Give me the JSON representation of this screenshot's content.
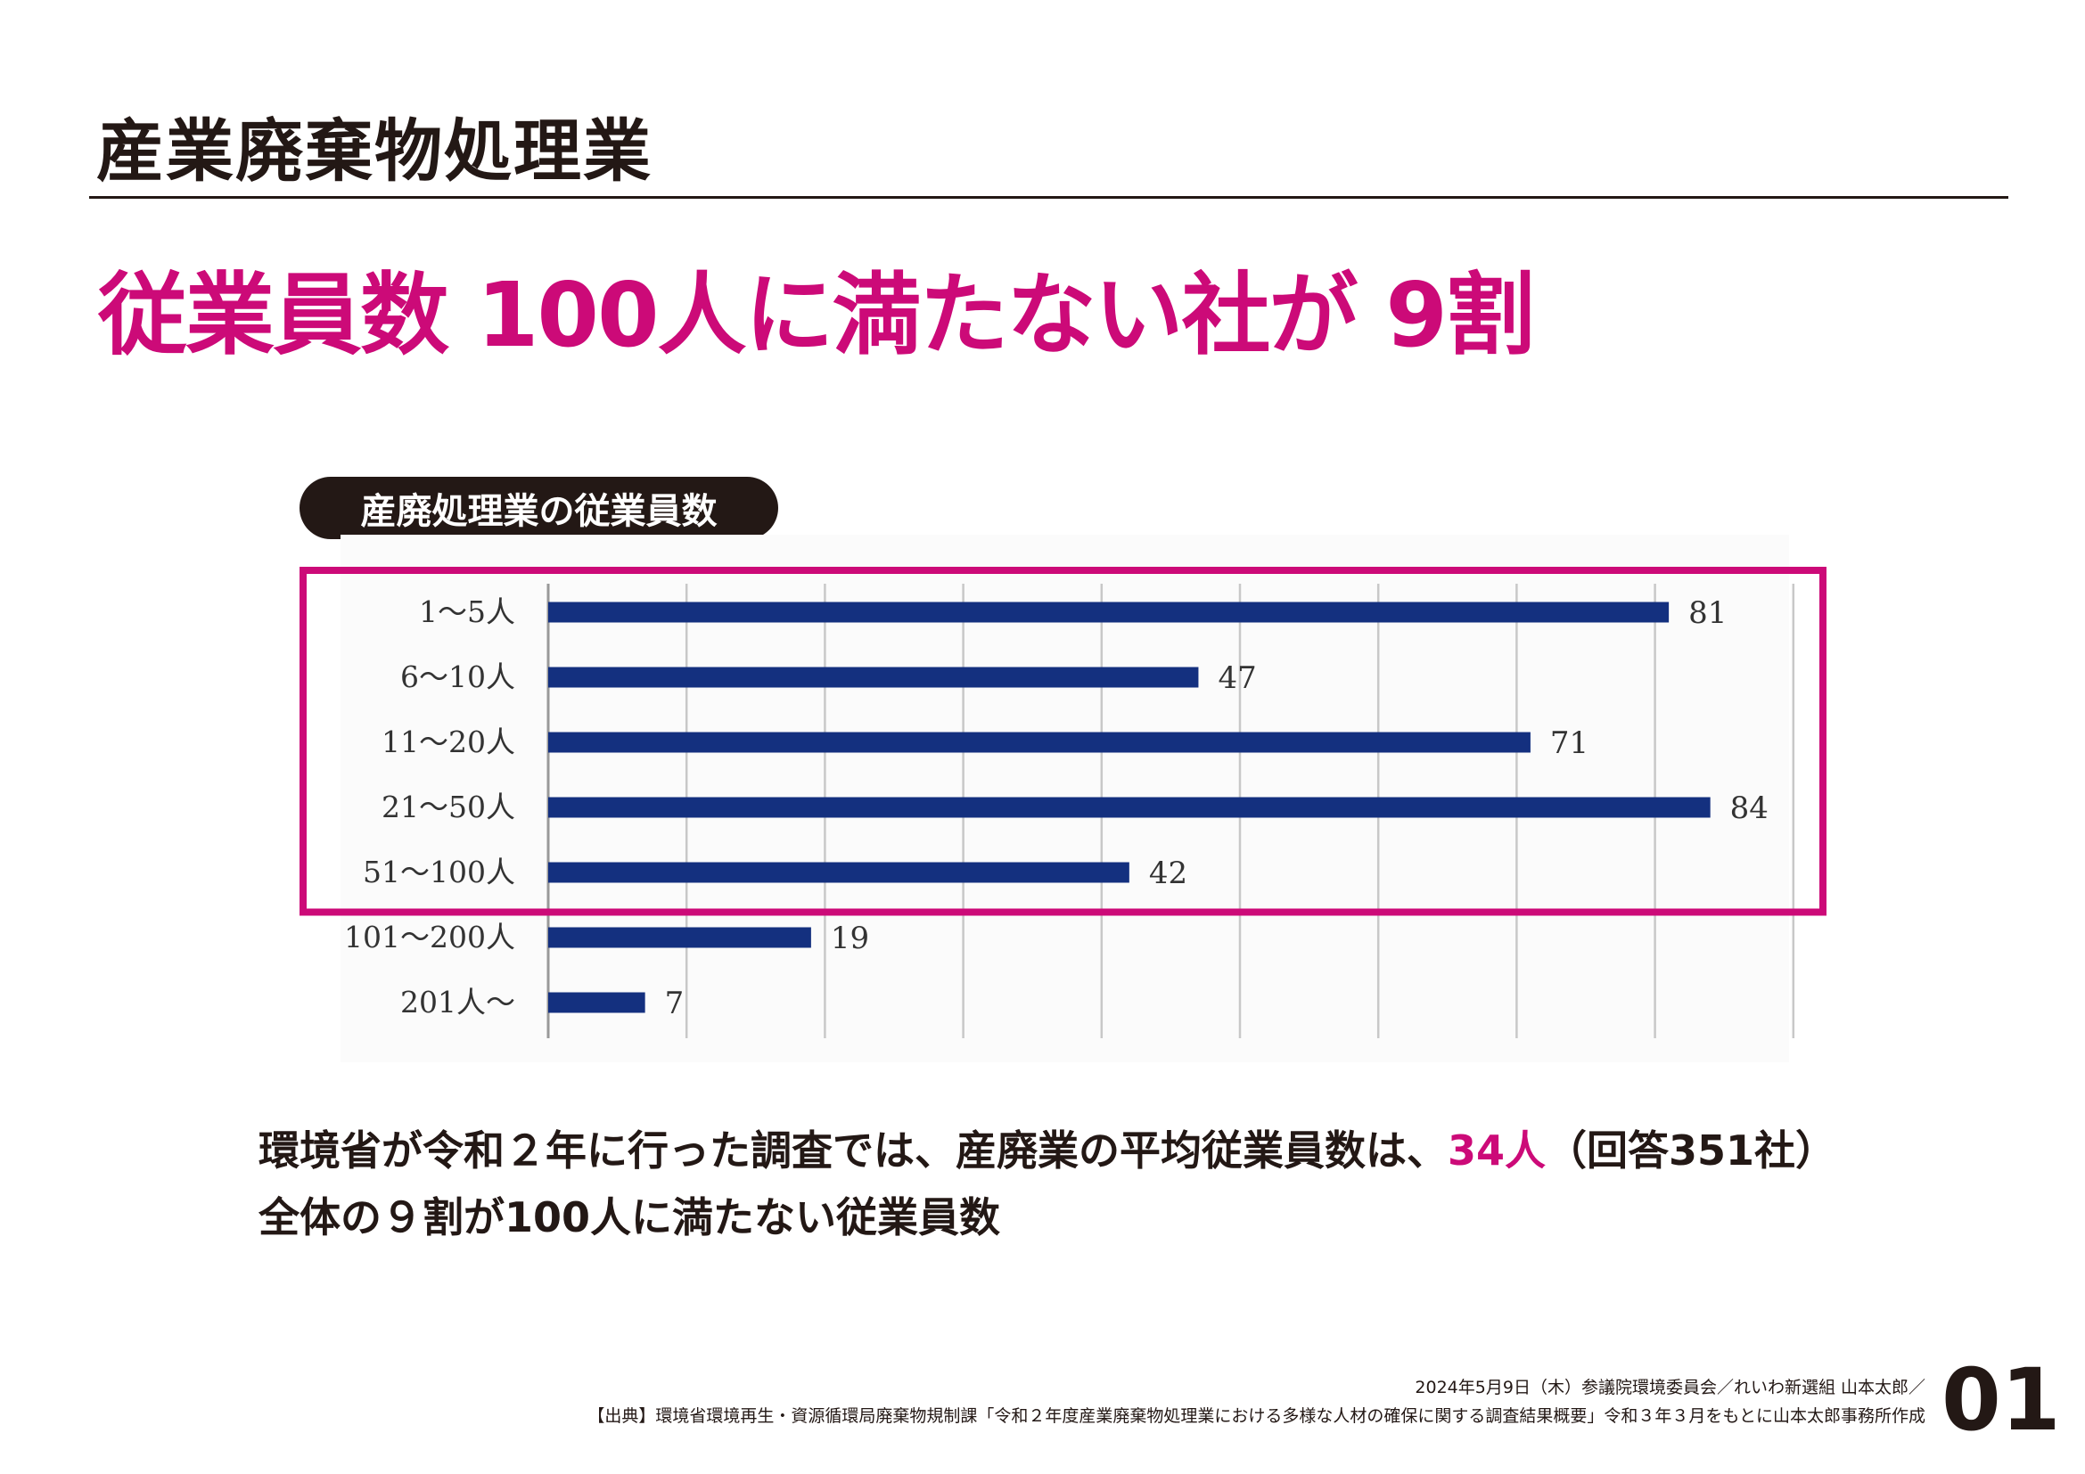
{
  "header": {
    "title": "産業廃棄物処理業",
    "headline": "従業員数 100人に満たない社が 9割"
  },
  "chart_data": {
    "type": "bar",
    "orientation": "horizontal",
    "title": "産廃処理業の従業員数",
    "categories": [
      "1〜5人",
      "6〜10人",
      "11〜20人",
      "21〜50人",
      "51〜100人",
      "101〜200人",
      "201人〜"
    ],
    "values": [
      81,
      47,
      71,
      84,
      42,
      19,
      7
    ],
    "xlim": [
      0,
      90
    ],
    "grid": true,
    "highlight": {
      "categories": [
        "1〜5人",
        "6〜10人",
        "11〜20人",
        "21〜50人",
        "51〜100人"
      ],
      "color": "#cc0a78"
    },
    "bar_color": "#14307f"
  },
  "body": {
    "line1_a": "環境省が令和２年に行った調査では、産廃業の平均従業員数は、",
    "line1_highlight": "34人",
    "line1_b": "（回答351社）",
    "line2": "全体の９割が100人に満たない従業員数"
  },
  "footer": {
    "line1": "2024年5月9日（木）参議院環境委員会／れいわ新選組 山本太郎／",
    "line2": "【出典】環境省環境再生・資源循環局廃棄物規制課「令和２年度産業廃棄物処理業における多様な人材の確保に関する調査結果概要」令和３年３月をもとに山本太郎事務所作成",
    "page": "01"
  }
}
